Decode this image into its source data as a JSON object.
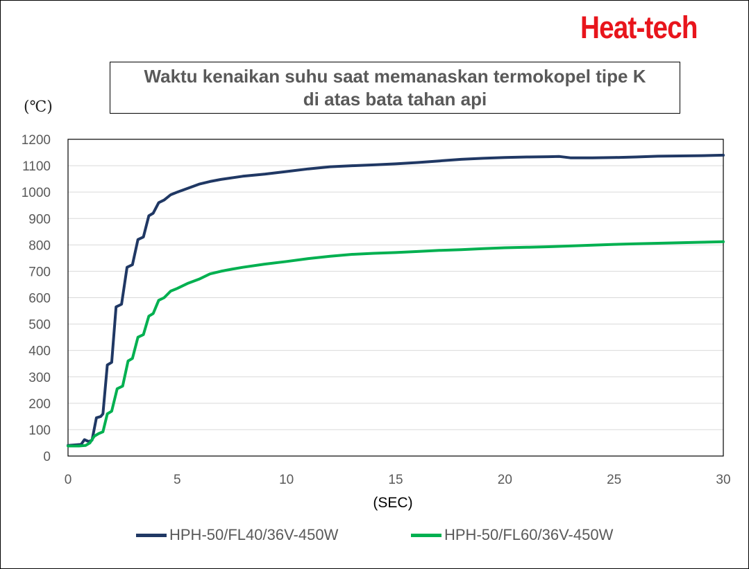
{
  "brand": {
    "logo_text": "Heat-tech",
    "color": "#e8151c"
  },
  "chart_data": {
    "type": "line",
    "title_lines": [
      "Waktu kenaikan suhu saat memanaskan termokopel tipe K",
      "di atas bata tahan api"
    ],
    "xlabel": "(SEC)",
    "ylabel": "(℃)",
    "xlim": [
      0,
      30
    ],
    "ylim": [
      0,
      1200
    ],
    "xticks": [
      0,
      5,
      10,
      15,
      20,
      25,
      30
    ],
    "yticks": [
      0,
      100,
      200,
      300,
      400,
      500,
      600,
      700,
      800,
      900,
      1000,
      1100,
      1200
    ],
    "grid": "horizontal",
    "legend_position": "bottom",
    "series": [
      {
        "name": "HPH-50/FL40/36V-450W",
        "color": "#203864",
        "points": [
          [
            0,
            40
          ],
          [
            0.3,
            42
          ],
          [
            0.6,
            44
          ],
          [
            0.75,
            62
          ],
          [
            0.95,
            55
          ],
          [
            1.1,
            60
          ],
          [
            1.3,
            145
          ],
          [
            1.5,
            150
          ],
          [
            1.6,
            160
          ],
          [
            1.8,
            345
          ],
          [
            2.0,
            355
          ],
          [
            2.2,
            565
          ],
          [
            2.45,
            575
          ],
          [
            2.7,
            715
          ],
          [
            2.95,
            725
          ],
          [
            3.2,
            820
          ],
          [
            3.45,
            830
          ],
          [
            3.7,
            910
          ],
          [
            3.9,
            920
          ],
          [
            4.15,
            960
          ],
          [
            4.4,
            970
          ],
          [
            4.7,
            990
          ],
          [
            5.0,
            1000
          ],
          [
            5.5,
            1015
          ],
          [
            6.0,
            1030
          ],
          [
            6.5,
            1040
          ],
          [
            7.0,
            1048
          ],
          [
            8.0,
            1060
          ],
          [
            9.0,
            1068
          ],
          [
            10.0,
            1078
          ],
          [
            11.0,
            1088
          ],
          [
            12.0,
            1096
          ],
          [
            13.0,
            1100
          ],
          [
            14.0,
            1103
          ],
          [
            15.0,
            1107
          ],
          [
            16.0,
            1112
          ],
          [
            17.0,
            1118
          ],
          [
            18.0,
            1124
          ],
          [
            19.0,
            1128
          ],
          [
            20.0,
            1131
          ],
          [
            21.0,
            1133
          ],
          [
            22.0,
            1134
          ],
          [
            22.5,
            1135
          ],
          [
            23.0,
            1130
          ],
          [
            24.0,
            1130
          ],
          [
            25.0,
            1131
          ],
          [
            26.0,
            1133
          ],
          [
            27.0,
            1136
          ],
          [
            28.0,
            1137
          ],
          [
            29.0,
            1138
          ],
          [
            30.0,
            1140
          ]
        ]
      },
      {
        "name": "HPH-50/FL60/36V-450W",
        "color": "#00b050",
        "points": [
          [
            0,
            38
          ],
          [
            0.5,
            38
          ],
          [
            0.8,
            40
          ],
          [
            1.0,
            50
          ],
          [
            1.2,
            75
          ],
          [
            1.4,
            85
          ],
          [
            1.6,
            92
          ],
          [
            1.8,
            160
          ],
          [
            2.0,
            170
          ],
          [
            2.25,
            255
          ],
          [
            2.5,
            265
          ],
          [
            2.75,
            360
          ],
          [
            2.95,
            370
          ],
          [
            3.2,
            450
          ],
          [
            3.45,
            460
          ],
          [
            3.7,
            530
          ],
          [
            3.9,
            540
          ],
          [
            4.15,
            590
          ],
          [
            4.4,
            600
          ],
          [
            4.7,
            625
          ],
          [
            5.0,
            635
          ],
          [
            5.5,
            655
          ],
          [
            6.0,
            670
          ],
          [
            6.5,
            690
          ],
          [
            7.0,
            700
          ],
          [
            7.5,
            708
          ],
          [
            8.0,
            715
          ],
          [
            9.0,
            727
          ],
          [
            10.0,
            737
          ],
          [
            11.0,
            748
          ],
          [
            12.0,
            757
          ],
          [
            13.0,
            764
          ],
          [
            14.0,
            768
          ],
          [
            15.0,
            771
          ],
          [
            16.0,
            775
          ],
          [
            17.0,
            779
          ],
          [
            18.0,
            782
          ],
          [
            19.0,
            786
          ],
          [
            20.0,
            789
          ],
          [
            21.0,
            791
          ],
          [
            22.0,
            793
          ],
          [
            23.0,
            796
          ],
          [
            24.0,
            799
          ],
          [
            25.0,
            802
          ],
          [
            26.0,
            804
          ],
          [
            27.0,
            806
          ],
          [
            28.0,
            808
          ],
          [
            29.0,
            810
          ],
          [
            30.0,
            812
          ]
        ]
      }
    ]
  }
}
